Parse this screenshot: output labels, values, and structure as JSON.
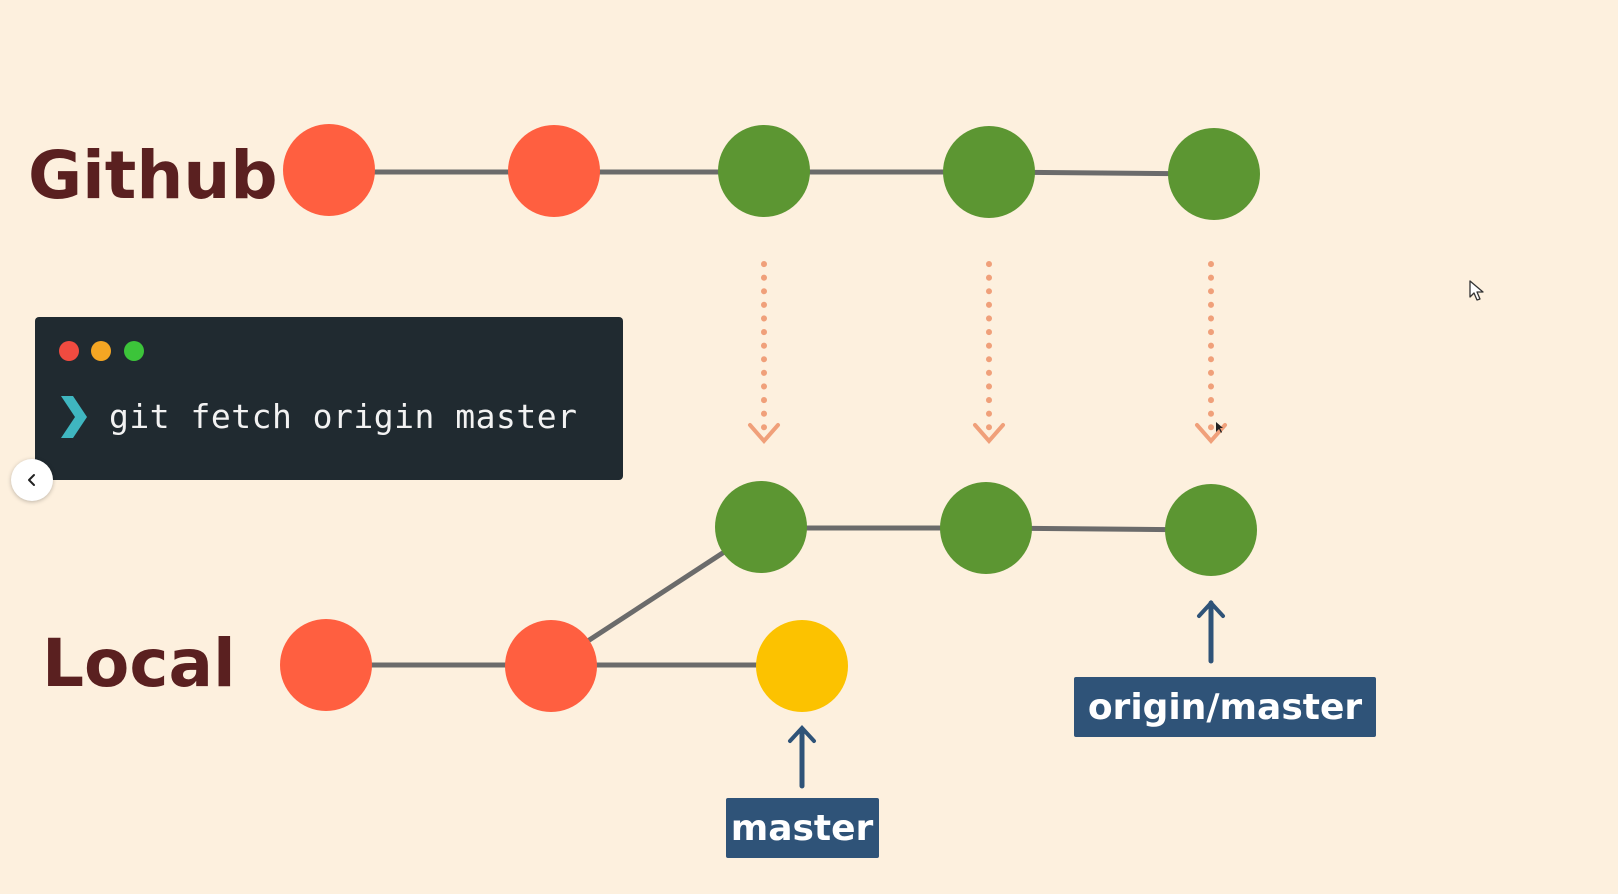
{
  "remote": {
    "label": "Github"
  },
  "local": {
    "label": "Local"
  },
  "terminal": {
    "command": "git fetch origin master",
    "window_dots": [
      "close-dot",
      "minimize-dot",
      "maximize-dot"
    ]
  },
  "refs": {
    "master": "master",
    "origin_master": "origin/master"
  },
  "colors": {
    "background": "#fdf0de",
    "shared_commit": "#ff5f40",
    "remote_commit": "#5c9632",
    "local_commit": "#fcc200",
    "edge": "#6b6b6b",
    "fetch_arrow": "#f0a07a",
    "ref_box": "#2f5378",
    "label_text": "#5a2020",
    "terminal_bg": "#202a30",
    "prompt": "#3fb6c0"
  },
  "icons": {
    "back": "chevron-left-icon",
    "cursor": "mouse-pointer-icon",
    "prompt": "chevron-right-icon"
  }
}
